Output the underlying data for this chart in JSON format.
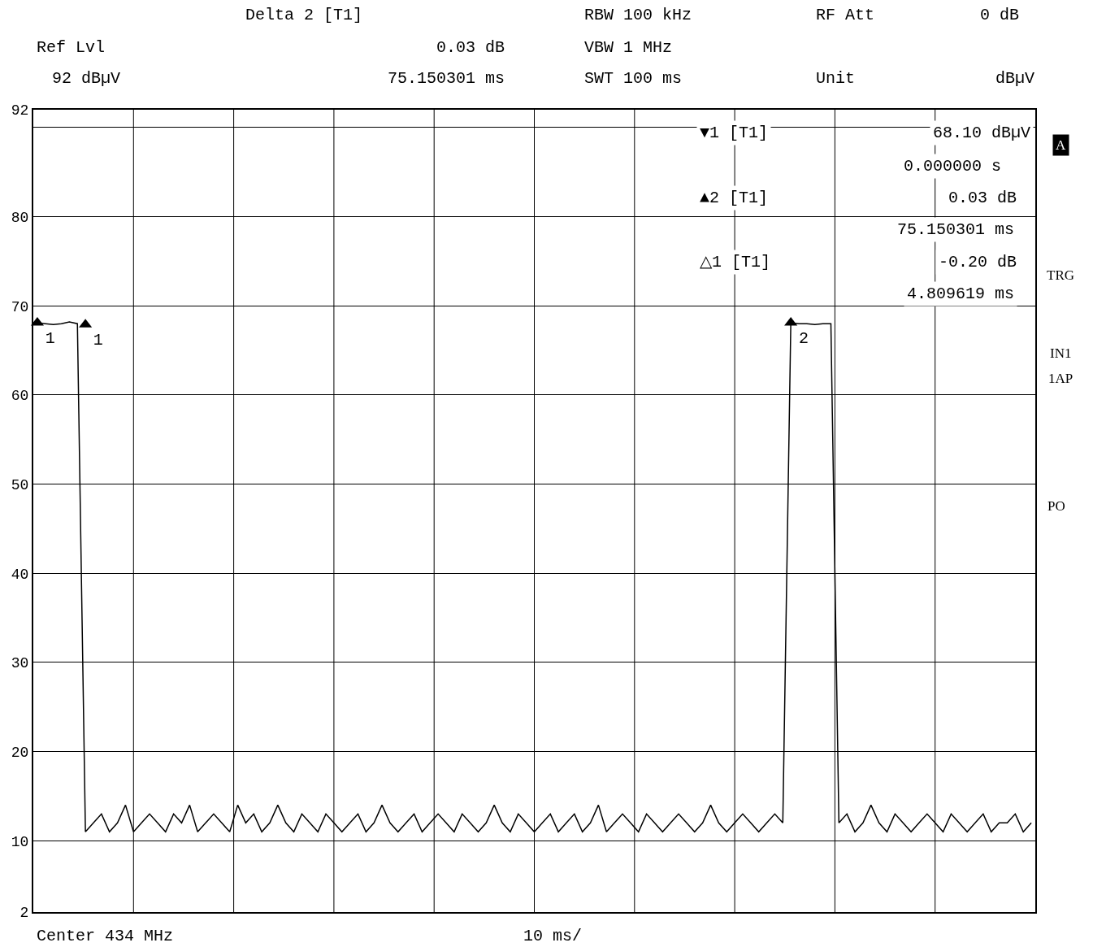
{
  "chart_data": {
    "type": "line",
    "categories": [
      null,
      null,
      null,
      null,
      null,
      null,
      null,
      null,
      null,
      null,
      null,
      null,
      null,
      null,
      null,
      null,
      null,
      null,
      null,
      null,
      null,
      null,
      null,
      null,
      null,
      null,
      null,
      null,
      null,
      null,
      null,
      null,
      null,
      null,
      null,
      null,
      null,
      null,
      null,
      null,
      null,
      null,
      null,
      null,
      null,
      null,
      null,
      null,
      null,
      null,
      null,
      null,
      null,
      null,
      null,
      null,
      null,
      null,
      null,
      null,
      null,
      null,
      null,
      null,
      null,
      null,
      null,
      null,
      null,
      null,
      null,
      null,
      null,
      null,
      null,
      null,
      null,
      null,
      null,
      null,
      null,
      null,
      null,
      null,
      null,
      null,
      null,
      null,
      null,
      null,
      null,
      null,
      null,
      null,
      null,
      null,
      null,
      null,
      null,
      null,
      null,
      null,
      null,
      null,
      null,
      null,
      null,
      null,
      null,
      null,
      null,
      null,
      null,
      null,
      null,
      null,
      null,
      null,
      null,
      null,
      null,
      null,
      null,
      null,
      null
    ],
    "series": [
      {
        "color": "#000000",
        "values": [
          68.1,
          68,
          67.9,
          68,
          68.2,
          68,
          11,
          12,
          13,
          11,
          12,
          14,
          11,
          12,
          13,
          12,
          11,
          13,
          12,
          14,
          11,
          12,
          13,
          12,
          11,
          14,
          12,
          13,
          11,
          12,
          14,
          12,
          11,
          13,
          12,
          11,
          13,
          12,
          11,
          12,
          13,
          11,
          12,
          14,
          12,
          11,
          12,
          13,
          11,
          12,
          13,
          12,
          11,
          13,
          12,
          11,
          12,
          14,
          12,
          11,
          13,
          12,
          11,
          12,
          13,
          11,
          12,
          13,
          11,
          12,
          14,
          11,
          12,
          13,
          12,
          11,
          13,
          12,
          11,
          12,
          13,
          12,
          11,
          12,
          14,
          12,
          11,
          12,
          13,
          12,
          11,
          12,
          13,
          12,
          68.1,
          68,
          68,
          67.9,
          68,
          68,
          12,
          13,
          11,
          12,
          14,
          12,
          11,
          13,
          12,
          11,
          12,
          13,
          12,
          11,
          13,
          12,
          11,
          12,
          13,
          11,
          12,
          12,
          13,
          11,
          12
        ]
      },
      {
        "type": "scatter",
        "name": "1",
        "color": "#000000",
        "marker": "triangle",
        "values": [
          68.1,
          null,
          null,
          null,
          null,
          null,
          null,
          null,
          null,
          null,
          null,
          null,
          null,
          null,
          null,
          null,
          null,
          null,
          null,
          null,
          null,
          null,
          null,
          null,
          null,
          null,
          null,
          null,
          null,
          null,
          null,
          null,
          null,
          null,
          null,
          null,
          null,
          null,
          null,
          null,
          null,
          null,
          null,
          null,
          null,
          null,
          null,
          null,
          null,
          null,
          null,
          null,
          null,
          null,
          null,
          null,
          null,
          null,
          null,
          null,
          null,
          null,
          null,
          null,
          null,
          null,
          null,
          null,
          null,
          null,
          null,
          null,
          null,
          null,
          null,
          null,
          null,
          null,
          null,
          null,
          null,
          null,
          null,
          null,
          null,
          null,
          null,
          null,
          null,
          null,
          null,
          null,
          null,
          null,
          null,
          null,
          null,
          null,
          null,
          null,
          null,
          null,
          null,
          null,
          null,
          null,
          null,
          null,
          null,
          null,
          null,
          null,
          null,
          null,
          null,
          null,
          null,
          null,
          null,
          null,
          null,
          null,
          null,
          null,
          null
        ]
      },
      {
        "type": "scatter",
        "name": "1",
        "color": "#000000",
        "marker": "triangle",
        "values": [
          null,
          null,
          null,
          null,
          null,
          null,
          67.9,
          null,
          null,
          null,
          null,
          null,
          null,
          null,
          null,
          null,
          null,
          null,
          null,
          null,
          null,
          null,
          null,
          null,
          null,
          null,
          null,
          null,
          null,
          null,
          null,
          null,
          null,
          null,
          null,
          null,
          null,
          null,
          null,
          null,
          null,
          null,
          null,
          null,
          null,
          null,
          null,
          null,
          null,
          null,
          null,
          null,
          null,
          null,
          null,
          null,
          null,
          null,
          null,
          null,
          null,
          null,
          null,
          null,
          null,
          null,
          null,
          null,
          null,
          null,
          null,
          null,
          null,
          null,
          null,
          null,
          null,
          null,
          null,
          null,
          null,
          null,
          null,
          null,
          null,
          null,
          null,
          null,
          null,
          null,
          null,
          null,
          null,
          null,
          null,
          null,
          null,
          null,
          null,
          null,
          null,
          null,
          null,
          null,
          null,
          null,
          null,
          null,
          null,
          null,
          null,
          null,
          null,
          null,
          null,
          null,
          null,
          null,
          null,
          null,
          null,
          null,
          null,
          null,
          null
        ]
      },
      {
        "type": "scatter",
        "name": "2",
        "color": "#000000",
        "marker": "triangle",
        "values": [
          null,
          null,
          null,
          null,
          null,
          null,
          null,
          null,
          null,
          null,
          null,
          null,
          null,
          null,
          null,
          null,
          null,
          null,
          null,
          null,
          null,
          null,
          null,
          null,
          null,
          null,
          null,
          null,
          null,
          null,
          null,
          null,
          null,
          null,
          null,
          null,
          null,
          null,
          null,
          null,
          null,
          null,
          null,
          null,
          null,
          null,
          null,
          null,
          null,
          null,
          null,
          null,
          null,
          null,
          null,
          null,
          null,
          null,
          null,
          null,
          null,
          null,
          null,
          null,
          null,
          null,
          null,
          null,
          null,
          null,
          null,
          null,
          null,
          null,
          null,
          null,
          null,
          null,
          null,
          null,
          null,
          null,
          null,
          null,
          null,
          null,
          null,
          null,
          null,
          null,
          null,
          null,
          null,
          null,
          68.1,
          null,
          null,
          null,
          null,
          null,
          null,
          null,
          null,
          null,
          null,
          null,
          null,
          null,
          null,
          null,
          null,
          null,
          null,
          null,
          null,
          null,
          null,
          null,
          null,
          null,
          null,
          null,
          null,
          null,
          null
        ]
      }
    ],
    "ylim": [
      2,
      92
    ],
    "yticks": [
      2,
      10,
      20,
      30,
      40,
      50,
      60,
      70,
      80,
      {
        "value": 90,
        "label": null
      },
      92
    ],
    "grid": true,
    "legend": false,
    "annotations": [
      "Delta 2 [T1]",
      "RBW 100 kHz",
      "RF Att",
      "0 dB",
      "Ref Lvl",
      "0.03 dB",
      "VBW 1 MHz",
      "92 dBµV",
      "75.150301 ms",
      "SWT 100 ms",
      "Unit",
      "dBµV",
      "▼1 [T1]",
      "68.10 dBµV",
      "0.000000 s",
      "▲2 [T1]",
      "0.03 dB",
      "75.150301 ms",
      "△1 [T1]",
      "-0.20 dB",
      "4.809619 ms",
      "A",
      "TRG",
      "IN1",
      "1AP",
      "PO",
      "Center 434 MHz",
      "10 ms/"
    ]
  }
}
